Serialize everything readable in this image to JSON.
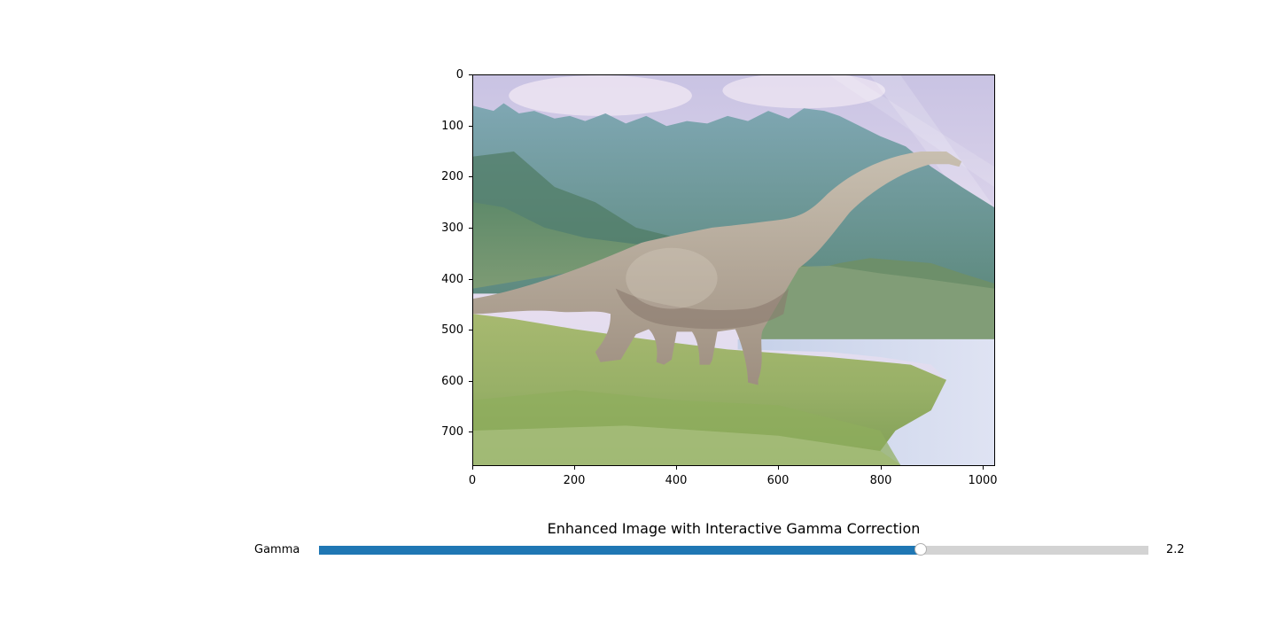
{
  "figure": {
    "title": "Enhanced Image with Interactive Gamma Correction",
    "image": {
      "subject": "brachiosaurus-in-valley",
      "extent": {
        "x": [
          0,
          1024
        ],
        "y": [
          0,
          768
        ]
      },
      "y_ticks": [
        "0",
        "100",
        "200",
        "300",
        "400",
        "500",
        "600",
        "700"
      ],
      "x_ticks": [
        "0",
        "200",
        "400",
        "600",
        "800",
        "1000"
      ]
    }
  },
  "slider": {
    "label": "Gamma",
    "value_text": "2.2",
    "value": 2.2,
    "fill_fraction": 0.725,
    "accent_color": "#1f77b4",
    "track_color": "#d3d3d3"
  }
}
